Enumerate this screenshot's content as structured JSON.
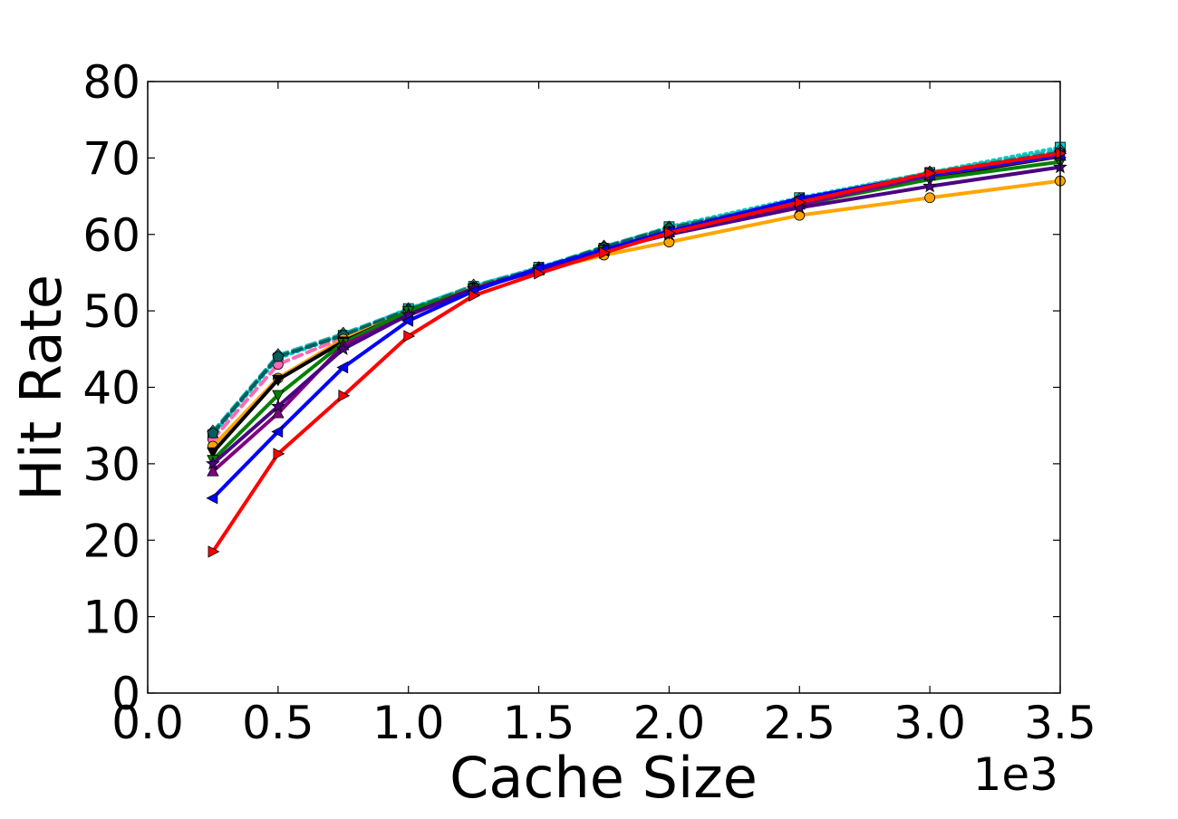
{
  "chart_data": {
    "type": "line",
    "title": "",
    "xlabel": "Cache Size",
    "ylabel": "Hit Rate",
    "x_offset_label": "1e3",
    "xlim": [
      0.0,
      3.5
    ],
    "ylim": [
      0,
      80
    ],
    "x_ticks": [
      "0.0",
      "0.5",
      "1.0",
      "1.5",
      "2.0",
      "2.5",
      "3.0",
      "3.5"
    ],
    "y_ticks": [
      "0",
      "10",
      "20",
      "30",
      "40",
      "50",
      "60",
      "70",
      "80"
    ],
    "grid": false,
    "legend": "none",
    "x": [
      0.25,
      0.5,
      0.75,
      1.0,
      1.25,
      1.5,
      1.75,
      2.0,
      2.5,
      3.0,
      3.5
    ],
    "series": [
      {
        "color": "#00cccc",
        "marker": "square",
        "dash": "dotted",
        "values": [
          33.8,
          43.8,
          46.8,
          50.3,
          53.2,
          55.7,
          58.2,
          61.0,
          64.8,
          68.1,
          71.4
        ]
      },
      {
        "color": "#ff69b4",
        "marker": "circle",
        "dash": "dashed",
        "values": [
          33.2,
          43.0,
          46.5,
          50.0,
          53.0,
          55.5,
          58.0,
          60.7,
          64.5,
          68.0,
          70.8
        ]
      },
      {
        "color": "#20b2aa",
        "marker": "diamond",
        "dash": "dashed",
        "values": [
          34.2,
          44.2,
          47.0,
          50.2,
          53.3,
          55.6,
          58.4,
          60.9,
          64.6,
          68.1,
          71.0
        ]
      },
      {
        "color": "#006060",
        "marker": "pentagon",
        "dash": "dashed",
        "values": [
          34.0,
          44.0,
          46.8,
          50.1,
          53.1,
          55.5,
          58.3,
          60.8,
          64.4,
          68.0,
          70.7
        ]
      },
      {
        "color": "#ffa500",
        "marker": "circle",
        "dash": "solid",
        "values": [
          32.3,
          41.2,
          46.3,
          49.8,
          53.0,
          55.2,
          57.3,
          59.0,
          62.5,
          64.8,
          67.0
        ]
      },
      {
        "color": "#000000",
        "marker": "triangle-down",
        "dash": "solid",
        "values": [
          31.5,
          41.0,
          46.0,
          49.9,
          52.9,
          55.3,
          58.0,
          60.2,
          63.8,
          67.5,
          70.2
        ]
      },
      {
        "color": "#008000",
        "marker": "triangle-down",
        "dash": "solid",
        "values": [
          30.5,
          39.0,
          45.8,
          50.0,
          52.9,
          55.4,
          58.0,
          60.4,
          63.9,
          67.2,
          69.5
        ]
      },
      {
        "color": "#800080",
        "marker": "triangle-up",
        "dash": "solid",
        "values": [
          29.0,
          36.6,
          45.5,
          49.4,
          52.8,
          55.3,
          57.9,
          60.3,
          63.9,
          67.7,
          70.3
        ]
      },
      {
        "color": "#4b0082",
        "marker": "star",
        "dash": "solid",
        "values": [
          30.0,
          37.5,
          45.0,
          49.5,
          52.9,
          55.4,
          57.9,
          60.0,
          63.5,
          66.3,
          68.8
        ]
      },
      {
        "color": "#0000ff",
        "marker": "triangle-left",
        "dash": "solid",
        "values": [
          25.5,
          34.2,
          42.6,
          48.7,
          52.6,
          55.6,
          58.0,
          60.4,
          64.7,
          67.8,
          70.4
        ]
      },
      {
        "color": "#ff0000",
        "marker": "triangle-right",
        "dash": "solid",
        "values": [
          18.5,
          31.3,
          38.9,
          46.7,
          52.0,
          54.9,
          57.6,
          60.2,
          64.2,
          68.0,
          70.6
        ]
      }
    ]
  }
}
